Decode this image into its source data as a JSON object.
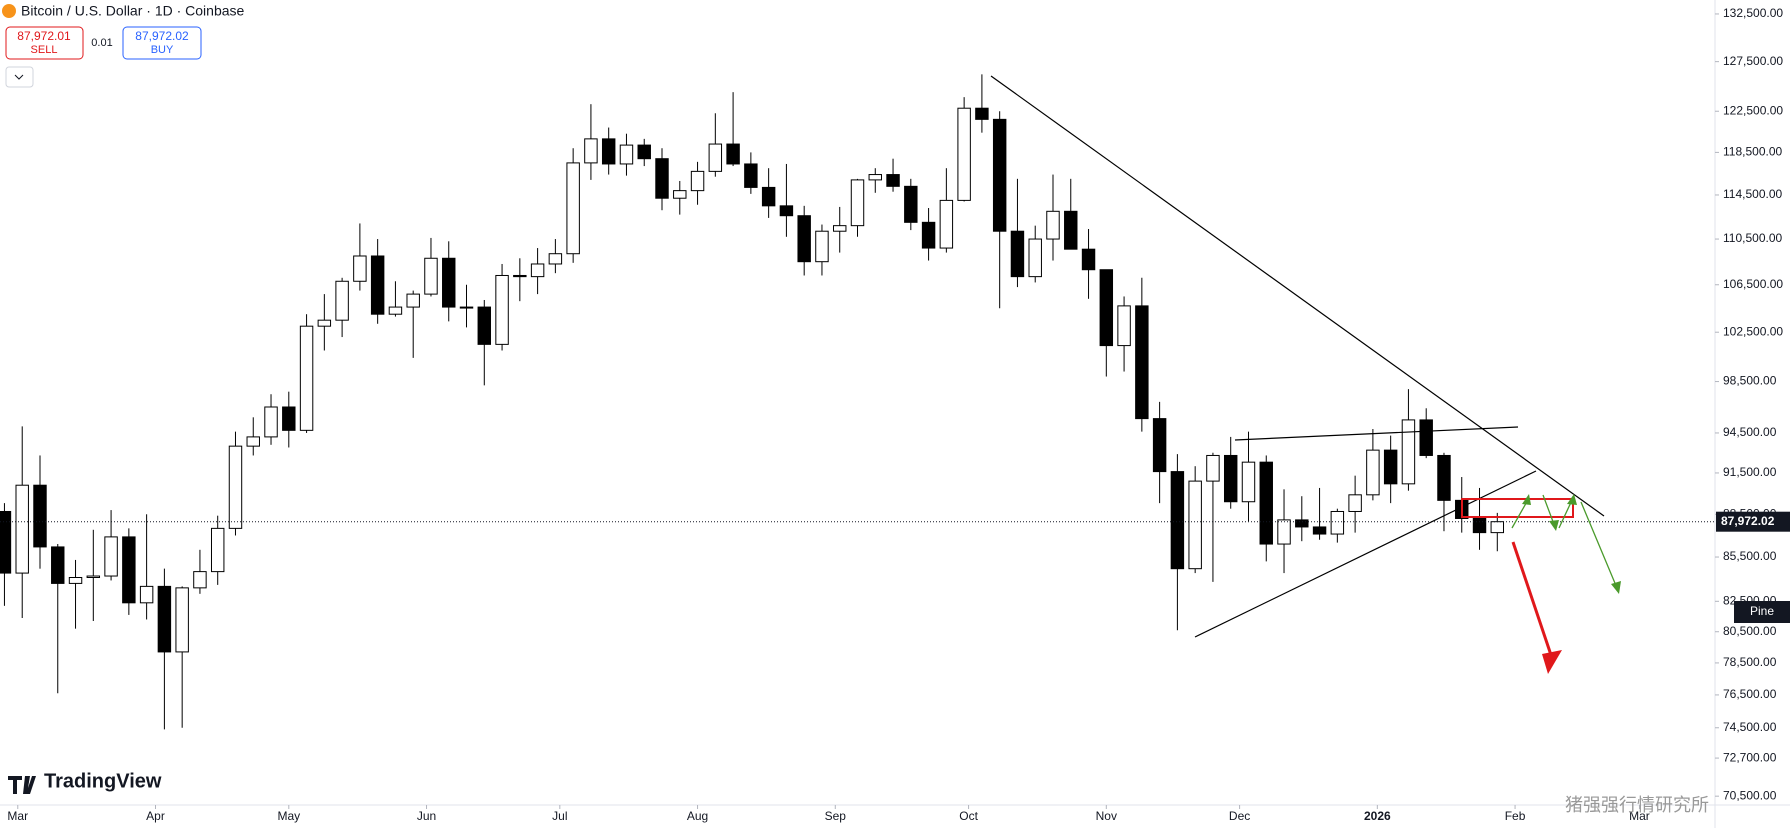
{
  "header": {
    "symbol": "Bitcoin / U.S. Dollar · 1D · Coinbase",
    "sell_price": "87,972.01",
    "sell_label": "SELL",
    "spread": "0.01",
    "buy_price": "87,972.02",
    "buy_label": "BUY"
  },
  "branding": {
    "logo": "TradingView",
    "watermark": "猪强强行情研究所",
    "pine": "Pine"
  },
  "chart_data": {
    "type": "candlestick",
    "log_scale": true,
    "up_color": "#ffffff",
    "down_color": "#000000",
    "border_color": "#000000",
    "x": [
      -3,
      1,
      5,
      9,
      13,
      17,
      21,
      25,
      29,
      33,
      37,
      41,
      45,
      49,
      53,
      57,
      61,
      65,
      69,
      73,
      77,
      81,
      85,
      89,
      93,
      97,
      101,
      105,
      109,
      113,
      117,
      121,
      125,
      129,
      133,
      137,
      141,
      145,
      149,
      153,
      157,
      161,
      165,
      169,
      173,
      177,
      181,
      185,
      189,
      193,
      197,
      201,
      205,
      209,
      213,
      217,
      221,
      225,
      229,
      233,
      237,
      241,
      245,
      249,
      253,
      257,
      261,
      265,
      269,
      273,
      277,
      281,
      285,
      289,
      293,
      297,
      301,
      305,
      309,
      313,
      317,
      321,
      325,
      329,
      333
    ],
    "open": [
      88700,
      84400,
      90600,
      86200,
      83700,
      84100,
      84200,
      86900,
      82400,
      83500,
      79200,
      83400,
      84500,
      87500,
      93500,
      94200,
      96500,
      94700,
      103000,
      103500,
      106800,
      109000,
      104000,
      104600,
      105700,
      108800,
      104600,
      104600,
      101500,
      107300,
      107200,
      108300,
      109200,
      117500,
      119800,
      117400,
      119200,
      117900,
      114200,
      114900,
      116700,
      119300,
      117400,
      115200,
      113500,
      112600,
      108500,
      111200,
      111700,
      115900,
      116400,
      115300,
      112000,
      109700,
      114000,
      122800,
      121700,
      111200,
      107200,
      110500,
      113000,
      109600,
      107800,
      101400,
      104700,
      95600,
      91600,
      84700,
      90900,
      92800,
      89400,
      92300,
      86400,
      88100,
      87600,
      87100,
      88700,
      89900,
      93200,
      90700,
      95500,
      92800,
      89500,
      88200,
      87200
    ],
    "high": [
      89300,
      95000,
      92800,
      86400,
      85300,
      87400,
      88800,
      87500,
      88500,
      84700,
      83500,
      86000,
      88400,
      94600,
      95700,
      97500,
      97700,
      104000,
      105700,
      107100,
      111900,
      110500,
      106800,
      106000,
      110600,
      110300,
      106500,
      105200,
      108300,
      108800,
      109700,
      110500,
      118900,
      123200,
      120900,
      120300,
      119800,
      118900,
      115800,
      117600,
      122300,
      124400,
      118500,
      117000,
      117400,
      113500,
      111800,
      113400,
      116000,
      117000,
      117900,
      116000,
      113300,
      117000,
      123900,
      126200,
      122500,
      116000,
      111700,
      116400,
      116000,
      111400,
      107300,
      105500,
      107100,
      96900,
      92900,
      92000,
      93000,
      94200,
      94600,
      92800,
      90300,
      89800,
      90400,
      88900,
      91300,
      94800,
      94300,
      97900,
      96400,
      93000,
      91200,
      90400,
      88600
    ],
    "low": [
      82200,
      81400,
      84700,
      76600,
      80700,
      81200,
      83900,
      81600,
      81300,
      74400,
      74500,
      83000,
      83600,
      87000,
      92800,
      93600,
      93400,
      94500,
      101000,
      102100,
      106000,
      103200,
      103800,
      100400,
      105500,
      103400,
      102900,
      98200,
      101000,
      105100,
      105700,
      107500,
      108400,
      115900,
      116400,
      116300,
      117200,
      113100,
      112700,
      113600,
      116200,
      117200,
      114600,
      112400,
      110700,
      107300,
      107300,
      109300,
      110700,
      114700,
      114800,
      111300,
      108600,
      109300,
      113900,
      120400,
      104500,
      106300,
      106700,
      108600,
      109700,
      105300,
      98900,
      99300,
      94600,
      89300,
      80600,
      84400,
      83800,
      88900,
      88000,
      85200,
      84400,
      86600,
      86700,
      86500,
      87200,
      89500,
      89300,
      90200,
      92600,
      87300,
      87200,
      86000,
      85900
    ],
    "close": [
      84400,
      90600,
      86200,
      83700,
      84100,
      84200,
      86900,
      82400,
      83500,
      79200,
      83400,
      84500,
      87500,
      93500,
      94200,
      96500,
      94700,
      103000,
      103500,
      106800,
      109000,
      104000,
      104600,
      105700,
      108800,
      104600,
      104600,
      101500,
      107300,
      107200,
      108300,
      109200,
      117500,
      119800,
      117400,
      119200,
      117900,
      114200,
      114900,
      116700,
      119300,
      117400,
      115200,
      113500,
      112600,
      108500,
      111200,
      111700,
      115900,
      116400,
      115300,
      112000,
      109700,
      114000,
      122800,
      121700,
      111200,
      107200,
      110500,
      113000,
      109600,
      107800,
      101400,
      104700,
      95600,
      91600,
      84700,
      90900,
      92800,
      89400,
      92300,
      86400,
      88100,
      87600,
      87100,
      88700,
      89900,
      93200,
      90700,
      95500,
      92800,
      89500,
      88200,
      87200,
      87972.02
    ],
    "last_price": {
      "value": 87972.02,
      "label": "87,972.02"
    },
    "xlim": [
      -4,
      382
    ],
    "xticks": [
      {
        "value": 0,
        "label": "Mar"
      },
      {
        "value": 31,
        "label": "Apr"
      },
      {
        "value": 61,
        "label": "May"
      },
      {
        "value": 92,
        "label": "Jun"
      },
      {
        "value": 122,
        "label": "Jul"
      },
      {
        "value": 153,
        "label": "Aug"
      },
      {
        "value": 184,
        "label": "Sep"
      },
      {
        "value": 214,
        "label": "Oct"
      },
      {
        "value": 245,
        "label": "Nov"
      },
      {
        "value": 275,
        "label": "Dec"
      },
      {
        "value": 306,
        "label": "2026"
      },
      {
        "value": 337,
        "label": "Feb"
      },
      {
        "value": 365,
        "label": "Mar"
      }
    ],
    "ylim": [
      70000,
      134000
    ],
    "yticks": [
      {
        "value": 132500,
        "label": "132,500.00"
      },
      {
        "value": 127500,
        "label": "127,500.00"
      },
      {
        "value": 122500,
        "label": "122,500.00"
      },
      {
        "value": 118500,
        "label": "118,500.00"
      },
      {
        "value": 114500,
        "label": "114,500.00"
      },
      {
        "value": 110500,
        "label": "110,500.00"
      },
      {
        "value": 106500,
        "label": "106,500.00"
      },
      {
        "value": 102500,
        "label": "102,500.00"
      },
      {
        "value": 98500,
        "label": "98,500.00"
      },
      {
        "value": 94500,
        "label": "94,500.00"
      },
      {
        "value": 91500,
        "label": "91,500.00"
      },
      {
        "value": 88500,
        "label": "88,500.00"
      },
      {
        "value": 85500,
        "label": "85,500.00"
      },
      {
        "value": 82500,
        "label": "82,500.00"
      },
      {
        "value": 80500,
        "label": "80,500.00"
      },
      {
        "value": 78500,
        "label": "78,500.00"
      },
      {
        "value": 76500,
        "label": "76,500.00"
      },
      {
        "value": 74500,
        "label": "74,500.00"
      },
      {
        "value": 72700,
        "label": "72,700.00"
      },
      {
        "value": 70500,
        "label": "70,500.00"
      }
    ]
  }
}
